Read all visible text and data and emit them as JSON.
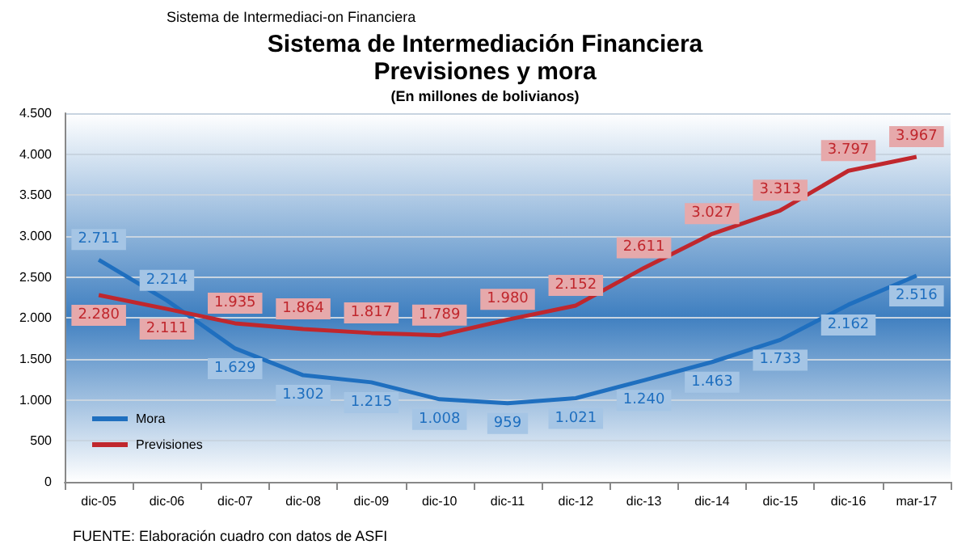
{
  "chart_data": {
    "type": "line",
    "title": "Sistema de Intermediación Financiera\nPrevisiones y mora",
    "subtitle": "(En millones de bolivianos)",
    "annotations": [
      "Sistema de Intermediaci-on Financiera",
      "FUENTE: Elaboración cuadro con datos de ASFI"
    ],
    "categories": [
      "dic-05",
      "dic-06",
      "dic-07",
      "dic-08",
      "dic-09",
      "dic-10",
      "dic-11",
      "dic-12",
      "dic-13",
      "dic-14",
      "dic-15",
      "dic-16",
      "mar-17"
    ],
    "series": [
      {
        "name": "Mora",
        "color": "#1f6fbf",
        "values": [
          2711,
          2214,
          1629,
          1302,
          1215,
          1008,
          959,
          1021,
          1240,
          1463,
          1733,
          2162,
          2516
        ],
        "value_labels": [
          "2.711",
          "2.214",
          "1.629",
          "1.302",
          "1.215",
          "1.008",
          "959",
          "1.021",
          "1.240",
          "1.463",
          "1.733",
          "2.162",
          "2.516"
        ]
      },
      {
        "name": "Previsiones",
        "color": "#c0272d",
        "values": [
          2280,
          2111,
          1935,
          1864,
          1817,
          1789,
          1980,
          2152,
          2611,
          3027,
          3313,
          3797,
          3967
        ],
        "value_labels": [
          "2.280",
          "2.111",
          "1.935",
          "1.864",
          "1.817",
          "1.789",
          "1.980",
          "2.152",
          "2.611",
          "3.027",
          "3.313",
          "3.797",
          "3.967"
        ]
      }
    ],
    "ylim": [
      0,
      4500
    ],
    "yticks": [
      0,
      500,
      {
        "value": 1000,
        "label": "1.000"
      },
      {
        "value": 1500,
        "label": "1.500"
      },
      {
        "value": 2000,
        "label": "2.000"
      },
      {
        "value": 2500,
        "label": "2.500"
      },
      {
        "value": 3000,
        "label": "3.000"
      },
      {
        "value": 3500,
        "label": "3.500"
      },
      {
        "value": 4000,
        "label": "4.000"
      },
      {
        "value": 4500,
        "label": "4.500"
      }
    ],
    "grid": "y",
    "legend": "bottom left",
    "marker": "none",
    "line_style": "solid"
  }
}
